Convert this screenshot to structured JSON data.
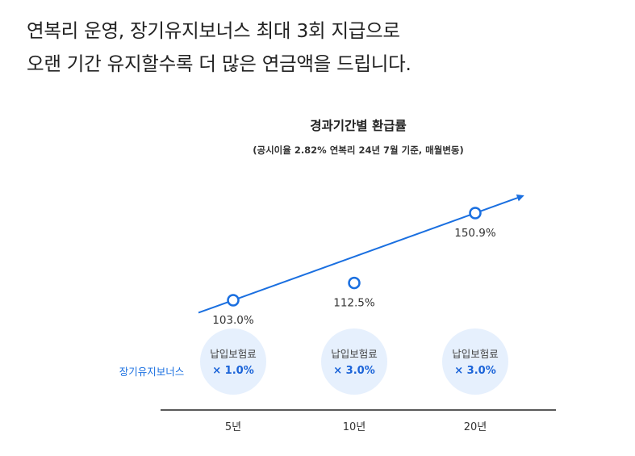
{
  "headline": {
    "line1": "연복리 운영, 장기유지보너스 최대 3회 지급으로",
    "line2": "오랜 기간 유지할수록 더 많은 연금액을 드립니다."
  },
  "colors": {
    "accent": "#1a6fe0",
    "bubble": "#e6f0fd",
    "axis": "#222222"
  },
  "chart_data": {
    "type": "line",
    "title": "경과기간별 환급률",
    "subtitle": "(공시이율 2.82% 연복리 24년 7월 기준, 매월변동)",
    "categories": [
      "5년",
      "10년",
      "20년"
    ],
    "values": [
      103.0,
      112.5,
      150.9
    ],
    "value_labels": [
      "103.0%",
      "112.5%",
      "150.9%"
    ],
    "unit": "%",
    "bonus_row": {
      "label": "장기유지보너스",
      "items": [
        {
          "title": "납입보험료",
          "value": "× 1.0%"
        },
        {
          "title": "납입보험료",
          "value": "× 3.0%"
        },
        {
          "title": "납입보험료",
          "value": "× 3.0%"
        }
      ]
    }
  }
}
